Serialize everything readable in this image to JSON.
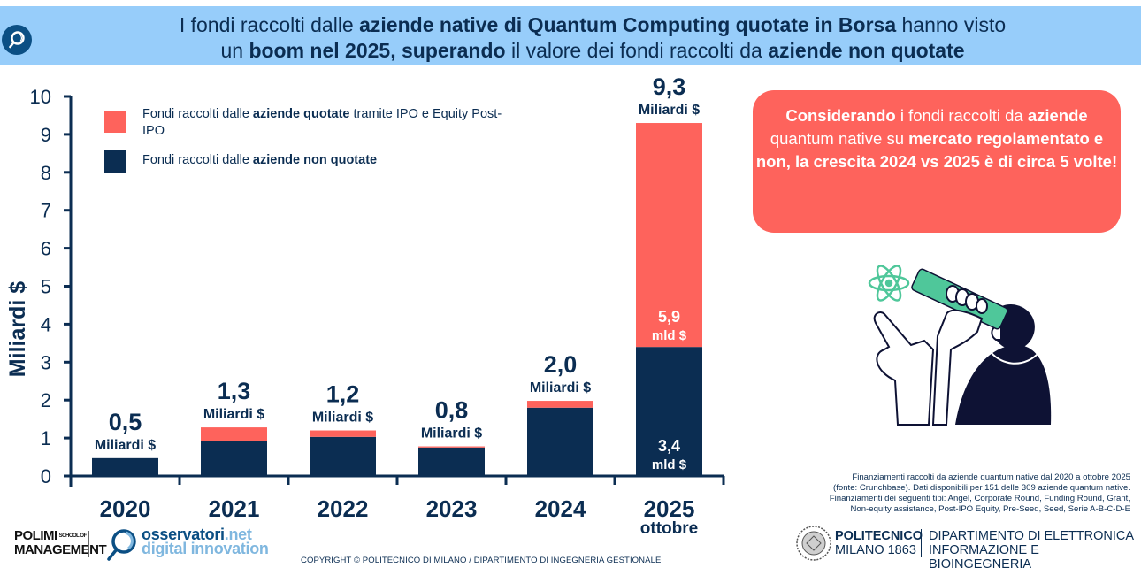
{
  "header": {
    "icon": "magnifier-logo-icon",
    "title_line1": [
      {
        "text": "I fondi raccolti dalle ",
        "bold": false
      },
      {
        "text": "aziende native di Quantum Computing quotate in Borsa",
        "bold": true
      },
      {
        "text": " hanno visto",
        "bold": false
      }
    ],
    "title_line2": [
      {
        "text": "un ",
        "bold": false
      },
      {
        "text": "boom nel 2025, superando",
        "bold": true
      },
      {
        "text": " il valore dei fondi raccolti da ",
        "bold": false
      },
      {
        "text": "aziende non quotate",
        "bold": true
      }
    ]
  },
  "colors": {
    "navy": "#0b2d52",
    "coral": "#fe635c",
    "header_bg": "#97cdfa",
    "icon_bg": "#0b4f84",
    "teal": "#4fc79a"
  },
  "legend": [
    {
      "series": "quotate",
      "parts": [
        {
          "text": "Fondi raccolti dalle ",
          "bold": false
        },
        {
          "text": "aziende quotate",
          "bold": true
        },
        {
          "text": " tramite IPO e Equity Post-IPO",
          "bold": false
        }
      ]
    },
    {
      "series": "non_quotate",
      "parts": [
        {
          "text": "Fondi raccolti dalle ",
          "bold": false
        },
        {
          "text": "aziende non quotate",
          "bold": true
        }
      ]
    }
  ],
  "chart_data": {
    "type": "bar",
    "stacked": true,
    "ylabel": "Miliardi $",
    "xlabel": "",
    "ylim": [
      0,
      10
    ],
    "yticks": [
      "0",
      "1",
      "2",
      "3",
      "4",
      "5",
      "6",
      "7",
      "8",
      "9",
      "10"
    ],
    "categories": [
      "2020",
      "2021",
      "2022",
      "2023",
      "2024",
      "2025"
    ],
    "category_sublabels": [
      "",
      "",
      "",
      "",
      "",
      "ottobre"
    ],
    "series": [
      {
        "name": "Fondi raccolti dalle aziende non quotate",
        "key": "non_quotate",
        "color": "#0b2d52",
        "values": [
          0.47,
          0.93,
          1.03,
          0.75,
          1.8,
          3.4
        ]
      },
      {
        "name": "Fondi raccolti dalle aziende quotate tramite IPO e Equity Post-IPO",
        "key": "quotate",
        "color": "#fe635c",
        "values": [
          0.0,
          0.35,
          0.17,
          0.03,
          0.18,
          5.9
        ]
      }
    ],
    "total_labels": [
      {
        "value": "0,5",
        "unit": "Miliardi $"
      },
      {
        "value": "1,3",
        "unit": "Miliardi $"
      },
      {
        "value": "1,2",
        "unit": "Miliardi $"
      },
      {
        "value": "0,8",
        "unit": "Miliardi $"
      },
      {
        "value": "2,0",
        "unit": "Miliardi $"
      },
      {
        "value": "9,3",
        "unit": "Miliardi $"
      }
    ],
    "segment_labels": [
      {
        "category": "2025",
        "series": "quotate",
        "value": "5,9",
        "unit": "mld $"
      },
      {
        "category": "2025",
        "series": "non_quotate",
        "value": "3,4",
        "unit": "mld $"
      }
    ],
    "grid": false,
    "legend_position": "top-left"
  },
  "callout": {
    "parts": [
      {
        "text": "Considerando",
        "bold": true
      },
      {
        "text": " i fondi raccolti da ",
        "bold": false
      },
      {
        "text": "aziende",
        "bold": true
      },
      {
        "text": " quantum native su ",
        "bold": false
      },
      {
        "text": "mercato regolamentato e non, la crescita 2024 vs 2025 è di circa 5 volte!",
        "bold": true
      }
    ]
  },
  "illustration": "person-with-telescope-and-atom-illustration",
  "note": [
    "Finanziamenti raccolti da aziende quantum native dal 2020 a ottobre 2025",
    "(fonte: Crunchbase). Dati disponibili per 151 delle 309 aziende quantum native.",
    "Finanziamenti dei seguenti tipi: Angel, Corporate Round, Funding Round, Grant,",
    "Non-equity assistance, Post-IPO Equity, Pre-Seed, Seed, Serie A-B-C-D-E"
  ],
  "footer": {
    "polimi_line1": "POLIMI",
    "polimi_small": "SCHOOL OF",
    "polimi_line2": "MANAGEMENT",
    "osservatori_main": "osservatori",
    "osservatori_tld": ".net",
    "osservatori_sub": "digital innovation",
    "copyright": "COPYRIGHT © POLITECNICO DI MILANO / DIPARTIMENTO DI INGEGNERIA GESTIONALE",
    "politecnico_line1": "POLITECNICO",
    "politecnico_line2": "MILANO 1863",
    "dept_line1": "DIPARTIMENTO DI ELETTRONICA",
    "dept_line2": "INFORMAZIONE E BIOINGEGNERIA"
  }
}
